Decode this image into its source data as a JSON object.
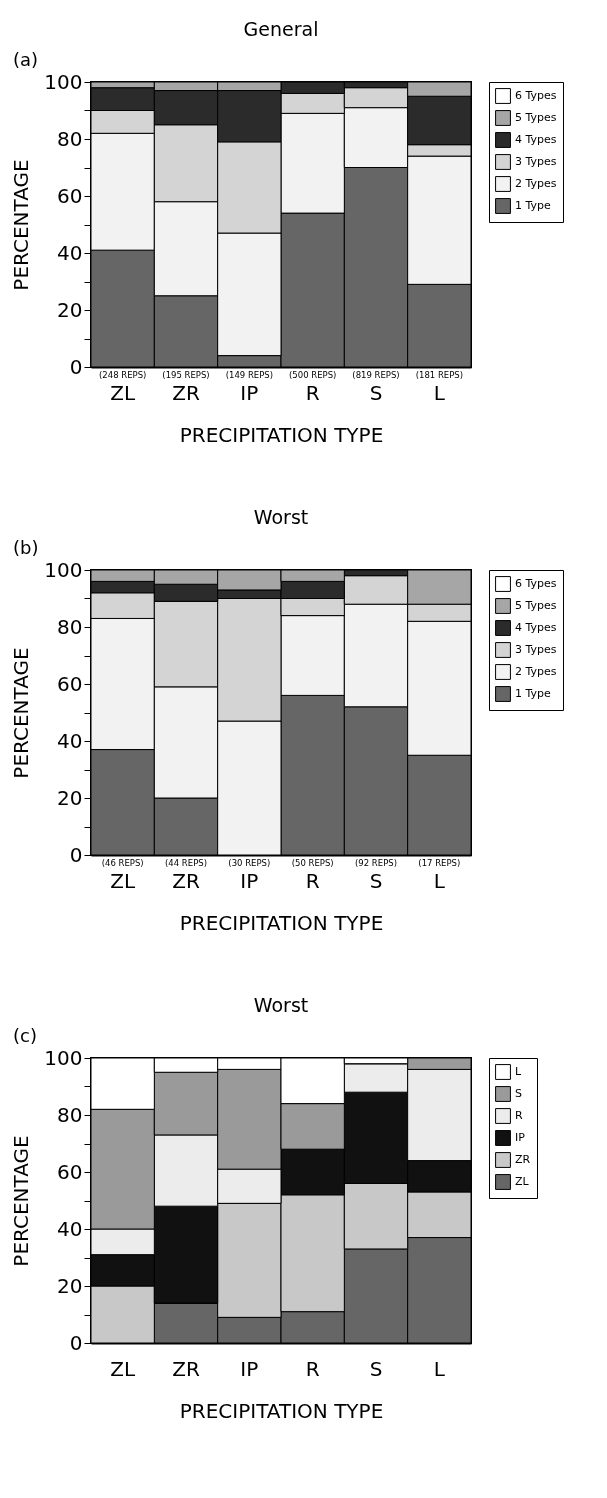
{
  "chart_data": [
    {
      "type": "bar",
      "title": "General",
      "xlabel": "PRECIPITATION TYPE",
      "ylabel": "PERCENTAGE",
      "stacked": true,
      "categories": [
        "ZL",
        "ZR",
        "IP",
        "R",
        "S",
        "L"
      ],
      "ylim": [
        0,
        100
      ],
      "yticks": [
        0,
        {
          "value": 10,
          "label": null
        },
        20,
        {
          "value": 30,
          "label": null
        },
        40,
        {
          "value": 50,
          "label": null
        },
        60,
        {
          "value": 70,
          "label": null
        },
        80,
        {
          "value": 90,
          "label": null
        },
        100
      ],
      "legend": "right",
      "series": [
        {
          "name": "1 Type",
          "color": "#666666",
          "values": [
            41,
            25,
            4,
            54,
            70,
            29
          ]
        },
        {
          "name": "2 Types",
          "color": "#f2f2f2",
          "values": [
            41,
            33,
            43,
            35,
            21,
            45
          ]
        },
        {
          "name": "3 Types",
          "color": "#d4d4d4",
          "values": [
            8,
            27,
            32,
            7,
            7,
            4
          ]
        },
        {
          "name": "4 Types",
          "color": "#2b2b2b",
          "values": [
            8,
            12,
            18,
            4,
            2,
            17
          ]
        },
        {
          "name": "5 Types",
          "color": "#a6a6a6",
          "values": [
            2,
            3,
            3,
            null,
            null,
            5
          ]
        },
        {
          "name": "6 Types",
          "color": "#ffffff",
          "values": [
            null,
            null,
            null,
            null,
            null,
            null
          ]
        }
      ],
      "annotations": [
        "(a)",
        {
          "text": "(248 REPS)",
          "x": "ZL",
          "y": 0
        },
        {
          "text": "(195 REPS)",
          "x": "ZR",
          "y": 0
        },
        {
          "text": "(149 REPS)",
          "x": "IP",
          "y": 0
        },
        {
          "text": "(500 REPS)",
          "x": "R",
          "y": 0
        },
        {
          "text": "(819 REPS)",
          "x": "S",
          "y": 0
        },
        {
          "text": "(181 REPS)",
          "x": "L",
          "y": 0
        }
      ]
    },
    {
      "type": "bar",
      "title": "Worst",
      "xlabel": "PRECIPITATION TYPE",
      "ylabel": "PERCENTAGE",
      "stacked": true,
      "categories": [
        "ZL",
        "ZR",
        "IP",
        "R",
        "S",
        "L"
      ],
      "ylim": [
        0,
        100
      ],
      "yticks": [
        0,
        {
          "value": 10,
          "label": null
        },
        20,
        {
          "value": 30,
          "label": null
        },
        40,
        {
          "value": 50,
          "label": null
        },
        60,
        {
          "value": 70,
          "label": null
        },
        80,
        {
          "value": 90,
          "label": null
        },
        100
      ],
      "legend": "right",
      "series": [
        {
          "name": "1 Type",
          "color": "#666666",
          "values": [
            37,
            20,
            null,
            56,
            52,
            35
          ]
        },
        {
          "name": "2 Types",
          "color": "#f2f2f2",
          "values": [
            46,
            39,
            47,
            28,
            36,
            47
          ]
        },
        {
          "name": "3 Types",
          "color": "#d4d4d4",
          "values": [
            9,
            30,
            43,
            6,
            10,
            6
          ]
        },
        {
          "name": "4 Types",
          "color": "#2b2b2b",
          "values": [
            4,
            6,
            3,
            6,
            2,
            null
          ]
        },
        {
          "name": "5 Types",
          "color": "#a6a6a6",
          "values": [
            4,
            5,
            7,
            4,
            null,
            12
          ]
        },
        {
          "name": "6 Types",
          "color": "#ffffff",
          "values": [
            null,
            null,
            null,
            null,
            null,
            null
          ]
        }
      ],
      "annotations": [
        "(b)",
        {
          "text": "(46 REPS)",
          "x": "ZL",
          "y": 0
        },
        {
          "text": "(44 REPS)",
          "x": "ZR",
          "y": 0
        },
        {
          "text": "(30 REPS)",
          "x": "IP",
          "y": 0
        },
        {
          "text": "(50 REPS)",
          "x": "R",
          "y": 0
        },
        {
          "text": "(92 REPS)",
          "x": "S",
          "y": 0
        },
        {
          "text": "(17 REPS)",
          "x": "L",
          "y": 0
        }
      ]
    },
    {
      "type": "bar",
      "title": "Worst",
      "xlabel": "PRECIPITATION TYPE",
      "ylabel": "PERCENTAGE",
      "stacked": true,
      "categories": [
        "ZL",
        "ZR",
        "IP",
        "R",
        "S",
        "L"
      ],
      "ylim": [
        0,
        100
      ],
      "yticks": [
        0,
        {
          "value": 10,
          "label": null
        },
        20,
        {
          "value": 30,
          "label": null
        },
        40,
        {
          "value": 50,
          "label": null
        },
        60,
        {
          "value": 70,
          "label": null
        },
        80,
        {
          "value": 90,
          "label": null
        },
        100
      ],
      "legend": "right",
      "series": [
        {
          "name": "ZL",
          "color": "#666666",
          "values": [
            0,
            14,
            9,
            11,
            33,
            37
          ]
        },
        {
          "name": "ZR",
          "color": "#c8c8c8",
          "values": [
            20,
            0,
            40,
            41,
            23,
            16
          ]
        },
        {
          "name": "IP",
          "color": "#111111",
          "values": [
            11,
            34,
            0,
            16,
            32,
            11
          ]
        },
        {
          "name": "R",
          "color": "#ececec",
          "values": [
            9,
            25,
            12,
            0,
            10,
            32
          ]
        },
        {
          "name": "S",
          "color": "#9a9a9a",
          "values": [
            42,
            22,
            35,
            16,
            0,
            4
          ]
        },
        {
          "name": "L",
          "color": "#ffffff",
          "values": [
            18,
            5,
            4,
            16,
            2,
            null
          ]
        }
      ],
      "annotations": [
        "(c)"
      ]
    }
  ]
}
